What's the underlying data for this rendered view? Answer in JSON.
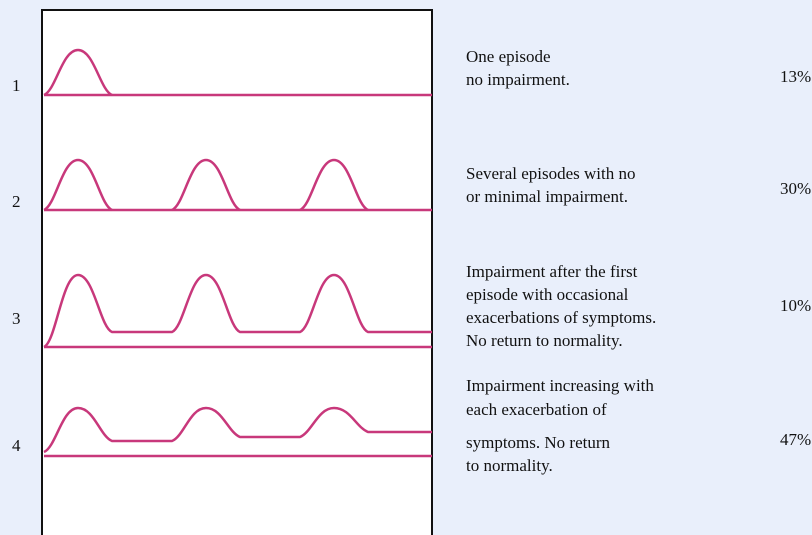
{
  "rows": [
    {
      "number": "1",
      "description": [
        "One episode",
        "no impairment."
      ],
      "percent": "13%"
    },
    {
      "number": "2",
      "description": [
        "Several episodes with no",
        "or minimal impairment."
      ],
      "percent": "30%"
    },
    {
      "number": "3",
      "description": [
        "Impairment after the first",
        "episode with occasional",
        "exacerbations of symptoms.",
        "No return to normality."
      ],
      "percent": "10%"
    },
    {
      "number": "4",
      "description": [
        "Impairment increasing with",
        "each exacerbation of",
        "symptoms. No return",
        "to normality."
      ],
      "percent": "47%"
    }
  ]
}
